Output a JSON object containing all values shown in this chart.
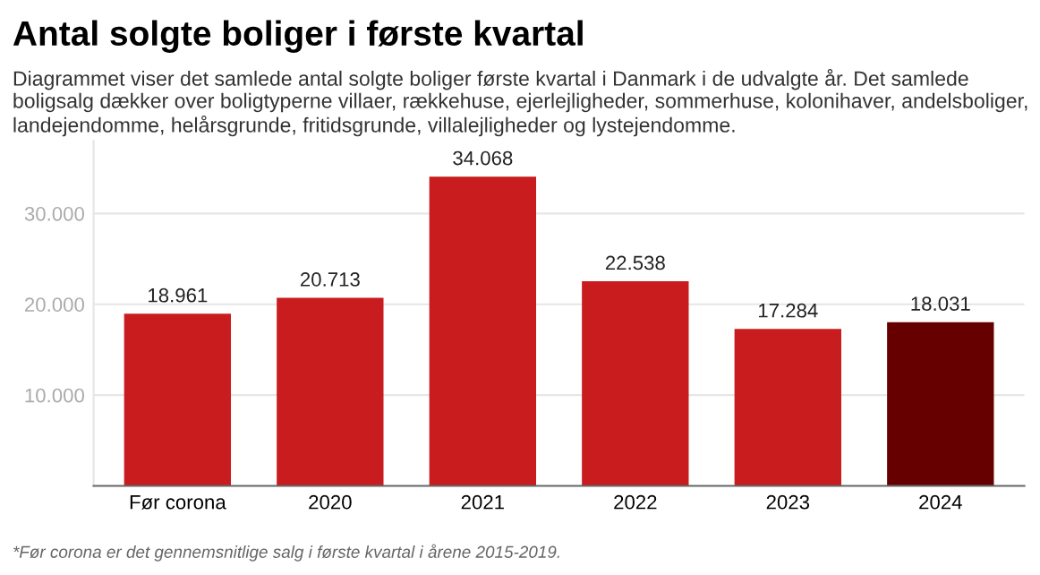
{
  "chart_data": {
    "type": "bar",
    "title": "Antal solgte boliger i første kvartal",
    "subtitle": "Diagrammet viser det samlede antal solgte boliger første kvartal i Danmark i de udvalgte år. Det samlede boligsalg dækker over boligtyperne villaer, rækkehuse, ejerlejligheder, sommerhuse, kolonihaver, andelsboliger, landejendomme, helårsgrunde, fritidsgrunde, villalejligheder og lystejendomme.",
    "categories": [
      "Før corona",
      "2020",
      "2021",
      "2022",
      "2023",
      "2024"
    ],
    "values": [
      18961,
      20713,
      34068,
      22538,
      17284,
      18031
    ],
    "value_labels": [
      "18.961",
      "20.713",
      "34.068",
      "22.538",
      "17.284",
      "18.031"
    ],
    "colors": [
      "#c81c1e",
      "#c81c1e",
      "#c81c1e",
      "#c81c1e",
      "#c81c1e",
      "#660000"
    ],
    "ylim": [
      0,
      38000
    ],
    "yticks": [
      {
        "value": 10000,
        "label": "10.000"
      },
      {
        "value": 20000,
        "label": "20.000"
      },
      {
        "value": 30000,
        "label": "30.000"
      }
    ],
    "grid": "y",
    "annotations": [
      "*Før corona er det gennemsnitlige salg i første kvartal i årene 2015-2019."
    ]
  }
}
